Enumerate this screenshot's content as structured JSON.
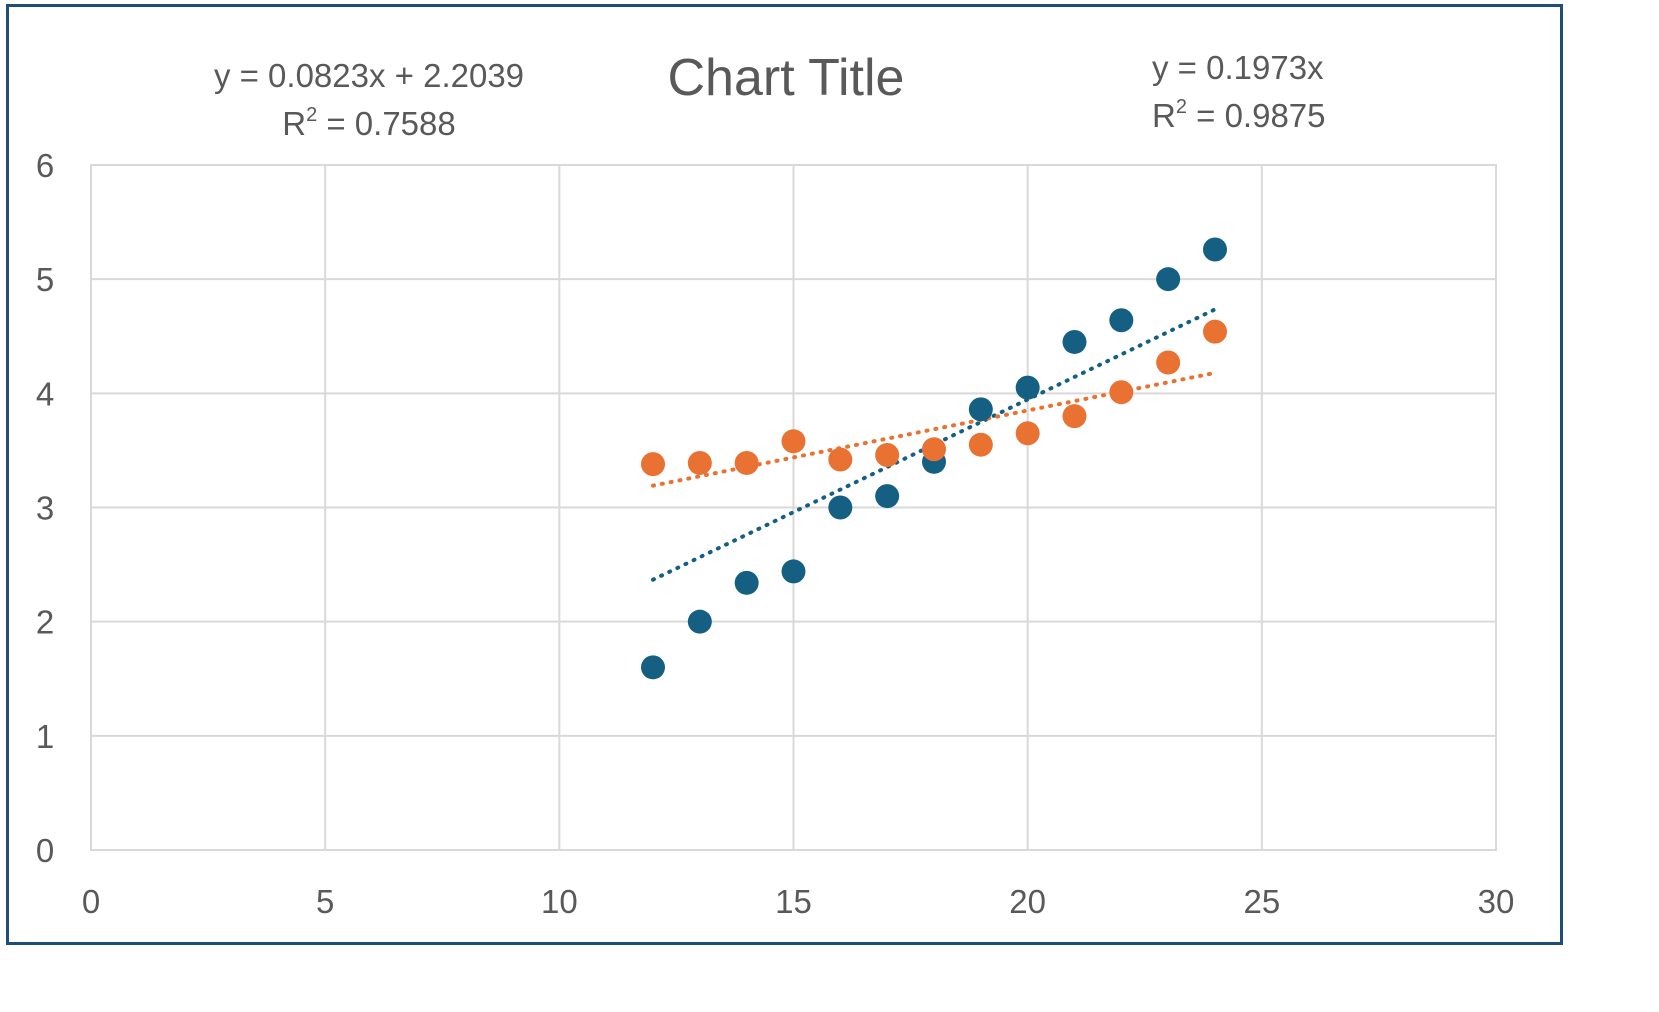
{
  "chart_data": {
    "type": "scatter",
    "title": "Chart Title",
    "xlabel": "",
    "ylabel": "",
    "xlim": [
      0,
      30
    ],
    "ylim": [
      0,
      6
    ],
    "x_ticks": [
      "0",
      "5",
      "10",
      "15",
      "20",
      "25",
      "30"
    ],
    "y_ticks": [
      "0",
      "1",
      "2",
      "3",
      "4",
      "5",
      "6"
    ],
    "grid": true,
    "legend": "none",
    "colors": {
      "series1": "#156082",
      "series2": "#e97132",
      "grid": "#d9d9d9",
      "text": "#595959",
      "border": "#1f4e79"
    },
    "series": [
      {
        "x": [
          12,
          13,
          14,
          15,
          16,
          17,
          18,
          19,
          20,
          21,
          22,
          23,
          24
        ],
        "y": [
          1.6,
          2.0,
          2.34,
          2.44,
          3.0,
          3.1,
          3.4,
          3.86,
          4.05,
          4.45,
          4.64,
          5.0,
          5.26
        ],
        "trendline": {
          "type": "linear",
          "slope": 0.1973,
          "intercept": 0,
          "x_range": [
            12,
            24
          ]
        }
      },
      {
        "x": [
          12,
          13,
          14,
          15,
          16,
          17,
          18,
          19,
          20,
          21,
          22,
          23,
          24
        ],
        "y": [
          3.38,
          3.39,
          3.39,
          3.58,
          3.42,
          3.46,
          3.51,
          3.55,
          3.65,
          3.8,
          4.01,
          4.27,
          4.54
        ],
        "trendline": {
          "type": "linear",
          "slope": 0.0823,
          "intercept": 2.2039,
          "x_range": [
            12,
            24
          ]
        }
      }
    ],
    "annotations": {
      "eq_left_line1": "y = 0.0823x + 2.2039",
      "eq_left_r2_label": "R",
      "eq_left_r2_sup": "2",
      "eq_left_r2_value": " = 0.7588",
      "eq_right_line1": "y = 0.1973x",
      "eq_right_r2_label": "R",
      "eq_right_r2_sup": "2",
      "eq_right_r2_value": " = 0.9875"
    }
  }
}
